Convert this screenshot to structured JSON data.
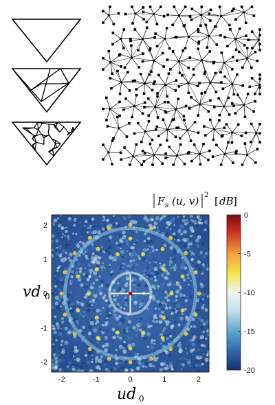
{
  "figure": {
    "subdivision_levels": [
      "level-0",
      "level-1",
      "level-2"
    ]
  },
  "heatmap": {
    "colorbar_title": "|F_s(u,v)|^2 [dB]",
    "colorbar_title_parts": {
      "F": "F",
      "sub": "s",
      "args": "(u, v)",
      "exp": "2",
      "unit": "dB"
    },
    "xlabel_main": "ud",
    "xlabel_sub": "0",
    "ylabel_main": "vd",
    "ylabel_sub": "0",
    "x_ticks": [
      "-2",
      "-1",
      "0",
      "1",
      "2"
    ],
    "y_ticks": [
      "2",
      "1",
      "0",
      "-1",
      "-2"
    ],
    "colorbar_ticks": [
      "0",
      "-5",
      "-10",
      "-15",
      "-20"
    ],
    "colors": {
      "low": "#1c3b7a",
      "mid": "#8fc7df",
      "high": "#f2e64a",
      "peak": "#7a0d0d"
    }
  },
  "chart_data": {
    "type": "heatmap",
    "title": "",
    "xlabel": "ud0",
    "ylabel": "vd0",
    "xlim": [
      -2.3,
      2.3
    ],
    "ylim": [
      -2.3,
      2.3
    ],
    "colorbar": {
      "label": "|Fs(u,v)|^2 [dB]",
      "range": [
        -20,
        0
      ],
      "ticks": [
        0,
        -5,
        -10,
        -15,
        -20
      ]
    }
  }
}
